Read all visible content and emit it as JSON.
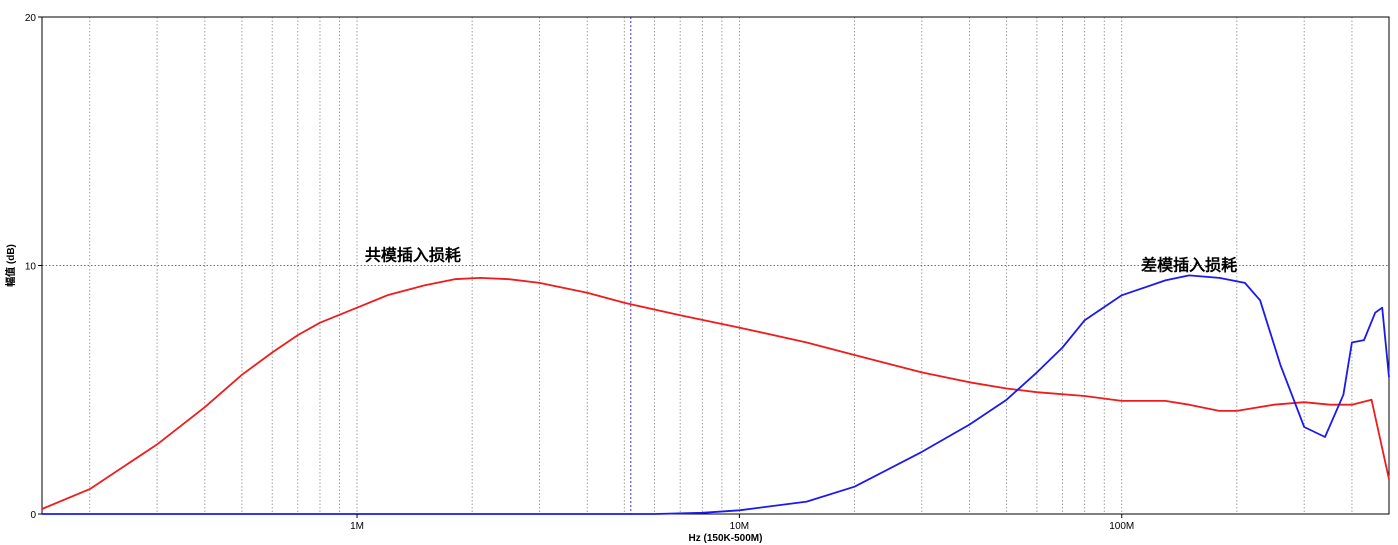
{
  "chart_data": {
    "type": "line",
    "xlabel": "Hz  (150K-500M)",
    "ylabel": "幅值 (dB)",
    "xscale": "log",
    "xlim": [
      150000,
      500000000
    ],
    "ylim": [
      0,
      20
    ],
    "grid": true,
    "x_tick_labels": [
      {
        "value": 1000000,
        "label": "1M"
      },
      {
        "value": 10000000,
        "label": "10M"
      },
      {
        "value": 100000000,
        "label": "100M"
      }
    ],
    "y_ticks": [
      0,
      10,
      20
    ],
    "marker_line": {
      "x": 5200000,
      "color": "#3333ff"
    },
    "annotations": [
      {
        "text": "共模插入损耗",
        "x": 1400000,
        "y": 10.2
      },
      {
        "text": "差模插入损耗",
        "x": 150000000,
        "y": 9.8
      }
    ],
    "series": [
      {
        "color": "#ee1c1c",
        "x": [
          150000,
          200000,
          300000,
          400000,
          500000,
          600000,
          700000,
          800000,
          1000000,
          1200000,
          1500000,
          1800000,
          2100000,
          2500000,
          3000000,
          4000000,
          5000000,
          7000000,
          10000000,
          15000000,
          20000000,
          30000000,
          40000000,
          50000000,
          60000000,
          80000000,
          100000000,
          130000000,
          150000000,
          180000000,
          200000000,
          250000000,
          300000000,
          350000000,
          400000000,
          450000000,
          500000000
        ],
        "y": [
          0.2,
          1.0,
          2.8,
          4.3,
          5.6,
          6.5,
          7.2,
          7.7,
          8.3,
          8.8,
          9.2,
          9.45,
          9.5,
          9.45,
          9.3,
          8.9,
          8.5,
          8.0,
          7.5,
          6.9,
          6.4,
          5.7,
          5.3,
          5.05,
          4.9,
          4.75,
          4.55,
          4.55,
          4.4,
          4.15,
          4.15,
          4.4,
          4.5,
          4.4,
          4.4,
          4.6,
          1.4
        ]
      },
      {
        "color": "#1a1aee",
        "x": [
          150000,
          1000000,
          5000000,
          6000000,
          8000000,
          10000000,
          15000000,
          20000000,
          30000000,
          40000000,
          50000000,
          60000000,
          70000000,
          80000000,
          100000000,
          130000000,
          150000000,
          180000000,
          210000000,
          230000000,
          260000000,
          300000000,
          340000000,
          380000000,
          400000000,
          430000000,
          460000000,
          480000000,
          500000000
        ],
        "y": [
          0,
          0,
          0,
          0,
          0.05,
          0.15,
          0.5,
          1.1,
          2.5,
          3.6,
          4.6,
          5.7,
          6.7,
          7.8,
          8.8,
          9.4,
          9.6,
          9.5,
          9.3,
          8.6,
          6.0,
          3.5,
          3.1,
          4.8,
          6.9,
          7.0,
          8.1,
          8.3,
          5.5
        ]
      }
    ]
  }
}
